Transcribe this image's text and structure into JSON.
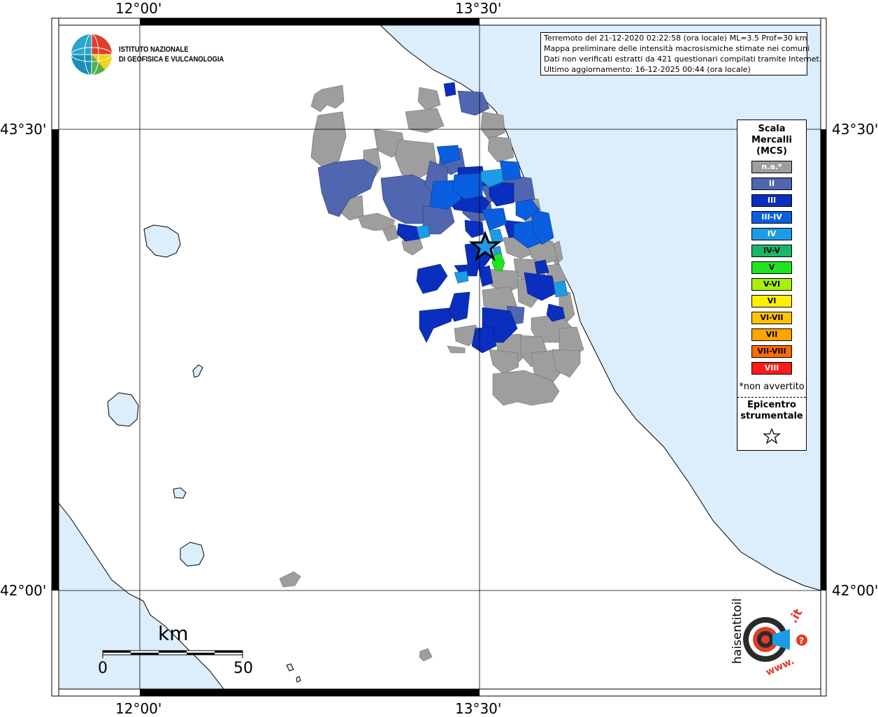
{
  "map": {
    "title_lines": [
      "Terremoto del 21-12-2020 02:22:58 (ora locale) ML=3.5 Prof=30 km",
      "Mappa preliminare delle intensità macrosismiche stimate nei comuni",
      "Dati non verificati estratti da 421 questionari compilati tramite Internet.",
      "Ultimo aggiornamento: 16-12-2025 00:44 (ora locale)"
    ],
    "coords": {
      "lon_left": "12°00'",
      "lon_right": "13°30'",
      "lat_top": "43°30'",
      "lat_bottom": "42°00'"
    },
    "institute": {
      "line1": "ISTITUTO NAZIONALE",
      "line2": "DI GEOFISICA E VULCANOLOGIA"
    },
    "scale_bar": {
      "unit": "km",
      "min": "0",
      "max": "50"
    },
    "sea_color": "#dcedfb",
    "land_color": "#ffffff"
  },
  "legend": {
    "title_lines": [
      "Scala",
      "Mercalli",
      "(MCS)"
    ],
    "items": [
      {
        "label": "n.a.*",
        "color": "#9e9e9e"
      },
      {
        "label": "II",
        "color": "#5066b0"
      },
      {
        "label": "III",
        "color": "#0a2fbf"
      },
      {
        "label": "III-IV",
        "color": "#0a5fe0"
      },
      {
        "label": "IV",
        "color": "#1e9be6"
      },
      {
        "label": "IV-V",
        "color": "#16b86a"
      },
      {
        "label": "V",
        "color": "#1ee61e"
      },
      {
        "label": "V-VI",
        "color": "#a6f00a"
      },
      {
        "label": "VI",
        "color": "#fff000"
      },
      {
        "label": "VI-VII",
        "color": "#ffc400"
      },
      {
        "label": "VII",
        "color": "#ffa500"
      },
      {
        "label": "VII-VIII",
        "color": "#ff6a00"
      },
      {
        "label": "VIII",
        "color": "#ff1a1a"
      }
    ],
    "note": "*non avvertito",
    "epicenter_lines": [
      "Epicentro",
      "strumentale"
    ]
  },
  "badge": {
    "text_main": "haisentitoilterremoto",
    "text_tld": ".it",
    "text_www": "www."
  }
}
